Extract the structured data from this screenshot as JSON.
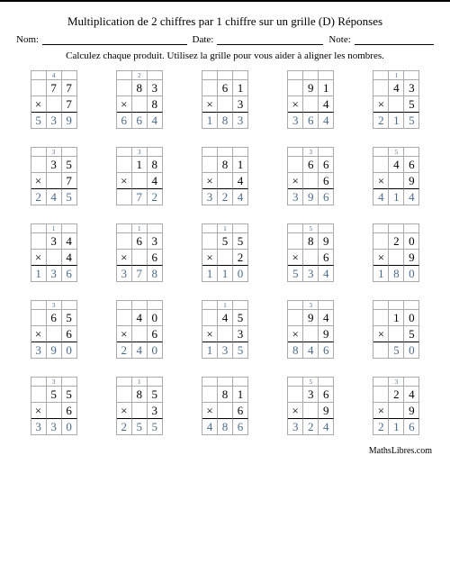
{
  "title": "Multiplication de 2 chiffres par 1 chiffre sur un grille (D) Réponses",
  "labels": {
    "nom": "Nom:",
    "date": "Date:",
    "note": "Note:"
  },
  "instruction": "Calculez chaque produit. Utilisez la grille pour vous aider à aligner les nombres.",
  "op": "×",
  "footer": "MathsLibres.com",
  "problems": [
    {
      "c": [
        "4",
        ""
      ],
      "a": [
        "",
        "7",
        "7"
      ],
      "b": "7",
      "r": [
        "5",
        "3",
        "9"
      ]
    },
    {
      "c": [
        "2",
        ""
      ],
      "a": [
        "",
        "8",
        "3"
      ],
      "b": "8",
      "r": [
        "6",
        "6",
        "4"
      ]
    },
    {
      "c": [
        "",
        ""
      ],
      "a": [
        "",
        "6",
        "1"
      ],
      "b": "3",
      "r": [
        "1",
        "8",
        "3"
      ]
    },
    {
      "c": [
        "",
        ""
      ],
      "a": [
        "",
        "9",
        "1"
      ],
      "b": "4",
      "r": [
        "3",
        "6",
        "4"
      ]
    },
    {
      "c": [
        "1",
        ""
      ],
      "a": [
        "",
        "4",
        "3"
      ],
      "b": "5",
      "r": [
        "2",
        "1",
        "5"
      ]
    },
    {
      "c": [
        "3",
        ""
      ],
      "a": [
        "",
        "3",
        "5"
      ],
      "b": "7",
      "r": [
        "2",
        "4",
        "5"
      ]
    },
    {
      "c": [
        "3",
        ""
      ],
      "a": [
        "",
        "1",
        "8"
      ],
      "b": "4",
      "r": [
        "",
        "7",
        "2"
      ]
    },
    {
      "c": [
        "",
        ""
      ],
      "a": [
        "",
        "8",
        "1"
      ],
      "b": "4",
      "r": [
        "3",
        "2",
        "4"
      ]
    },
    {
      "c": [
        "3",
        ""
      ],
      "a": [
        "",
        "6",
        "6"
      ],
      "b": "6",
      "r": [
        "3",
        "9",
        "6"
      ]
    },
    {
      "c": [
        "5",
        ""
      ],
      "a": [
        "",
        "4",
        "6"
      ],
      "b": "9",
      "r": [
        "4",
        "1",
        "4"
      ]
    },
    {
      "c": [
        "1",
        ""
      ],
      "a": [
        "",
        "3",
        "4"
      ],
      "b": "4",
      "r": [
        "1",
        "3",
        "6"
      ]
    },
    {
      "c": [
        "1",
        ""
      ],
      "a": [
        "",
        "6",
        "3"
      ],
      "b": "6",
      "r": [
        "3",
        "7",
        "8"
      ]
    },
    {
      "c": [
        "1",
        ""
      ],
      "a": [
        "",
        "5",
        "5"
      ],
      "b": "2",
      "r": [
        "1",
        "1",
        "0"
      ]
    },
    {
      "c": [
        "5",
        ""
      ],
      "a": [
        "",
        "8",
        "9"
      ],
      "b": "6",
      "r": [
        "5",
        "3",
        "4"
      ]
    },
    {
      "c": [
        "",
        ""
      ],
      "a": [
        "",
        "2",
        "0"
      ],
      "b": "9",
      "r": [
        "1",
        "8",
        "0"
      ]
    },
    {
      "c": [
        "3",
        ""
      ],
      "a": [
        "",
        "6",
        "5"
      ],
      "b": "6",
      "r": [
        "3",
        "9",
        "0"
      ]
    },
    {
      "c": [
        "",
        ""
      ],
      "a": [
        "",
        "4",
        "0"
      ],
      "b": "6",
      "r": [
        "2",
        "4",
        "0"
      ]
    },
    {
      "c": [
        "1",
        ""
      ],
      "a": [
        "",
        "4",
        "5"
      ],
      "b": "3",
      "r": [
        "1",
        "3",
        "5"
      ]
    },
    {
      "c": [
        "3",
        ""
      ],
      "a": [
        "",
        "9",
        "4"
      ],
      "b": "9",
      "r": [
        "8",
        "4",
        "6"
      ]
    },
    {
      "c": [
        "",
        ""
      ],
      "a": [
        "",
        "1",
        "0"
      ],
      "b": "5",
      "r": [
        "",
        "5",
        "0"
      ]
    },
    {
      "c": [
        "3",
        ""
      ],
      "a": [
        "",
        "5",
        "5"
      ],
      "b": "6",
      "r": [
        "3",
        "3",
        "0"
      ]
    },
    {
      "c": [
        "1",
        ""
      ],
      "a": [
        "",
        "8",
        "5"
      ],
      "b": "3",
      "r": [
        "2",
        "5",
        "5"
      ]
    },
    {
      "c": [
        "",
        ""
      ],
      "a": [
        "",
        "8",
        "1"
      ],
      "b": "6",
      "r": [
        "4",
        "8",
        "6"
      ]
    },
    {
      "c": [
        "5",
        ""
      ],
      "a": [
        "",
        "3",
        "6"
      ],
      "b": "9",
      "r": [
        "3",
        "2",
        "4"
      ]
    },
    {
      "c": [
        "3",
        ""
      ],
      "a": [
        "",
        "2",
        "4"
      ],
      "b": "9",
      "r": [
        "2",
        "1",
        "6"
      ]
    }
  ]
}
